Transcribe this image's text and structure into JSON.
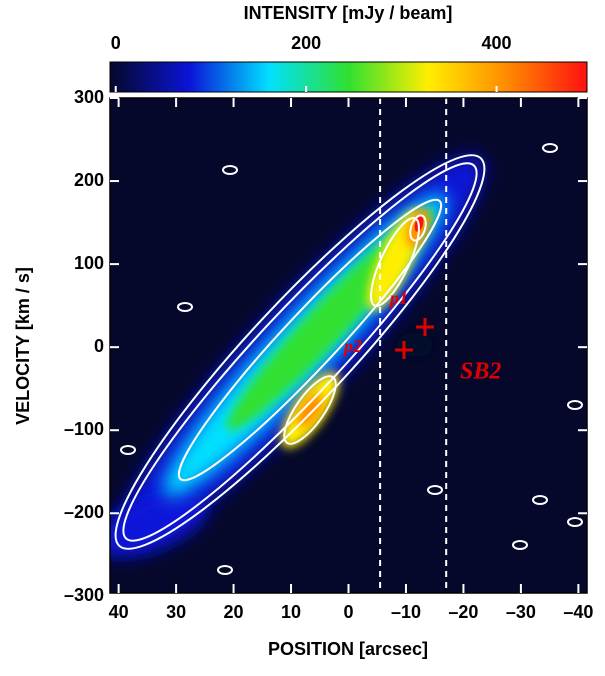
{
  "chart_data": {
    "type": "image",
    "title": "INTENSITY  [mJy / beam]",
    "x_label": "POSITION  [arcsec]",
    "y_label": "VELOCITY  [km / s]",
    "xlim": [
      41.5,
      -41.5
    ],
    "xticks": [
      40,
      30,
      20,
      10,
      0,
      {
        "value": -10,
        "label": "–10"
      },
      {
        "value": -20,
        "label": "–20"
      },
      {
        "value": -30,
        "label": "–30"
      },
      {
        "value": -40,
        "label": "–40"
      }
    ],
    "ylim": [
      -296,
      300
    ],
    "yticks": [
      {
        "value": -300,
        "label": "–300"
      },
      {
        "value": -200,
        "label": "–200"
      },
      {
        "value": -100,
        "label": "–100"
      },
      0,
      100,
      200,
      300
    ],
    "clim": [
      -6,
      495
    ],
    "cticks": [
      0,
      200,
      400
    ],
    "colormap": [
      "#05082a",
      "#0a14d8",
      "#00e0ff",
      "#30e030",
      "#ffee00",
      "#ff8a00",
      "#ff1010"
    ],
    "vlines": [
      -5.5,
      -17
    ],
    "annotations": [
      "p1",
      "p2",
      "SB2"
    ]
  }
}
